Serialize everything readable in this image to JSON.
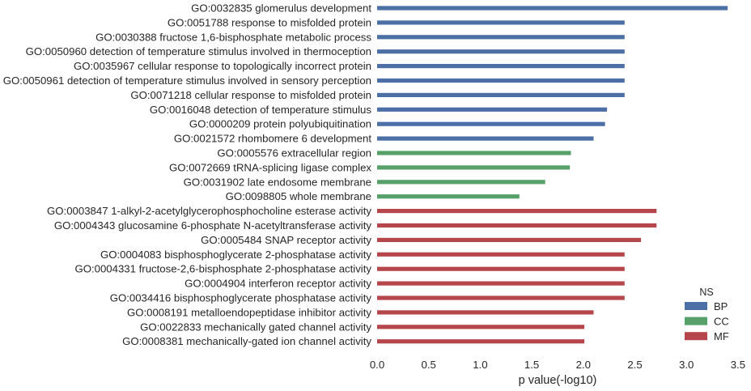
{
  "chart_data": {
    "type": "bar",
    "orientation": "horizontal",
    "xlabel": "p value(-log10)",
    "xlim": [
      0,
      3.5
    ],
    "xticks": [
      "0.0",
      "0.5",
      "1.0",
      "1.5",
      "2.0",
      "2.5",
      "3.0",
      "3.5"
    ],
    "grid": false,
    "legend": {
      "title": "NS",
      "placement": "bottom-right",
      "entries": [
        {
          "name": "BP",
          "color": "#4c6fa5"
        },
        {
          "name": "CC",
          "color": "#57a06a"
        },
        {
          "name": "MF",
          "color": "#b5474c"
        }
      ]
    },
    "bars": [
      {
        "label": "GO:0032835 glomerulus development",
        "value": 3.4,
        "ns": "BP"
      },
      {
        "label": "GO:0051788 response to misfolded protein",
        "value": 2.4,
        "ns": "BP"
      },
      {
        "label": "GO:0030388 fructose 1,6-bisphosphate metabolic process",
        "value": 2.4,
        "ns": "BP"
      },
      {
        "label": "GO:0050960 detection of temperature stimulus involved in thermoception",
        "value": 2.4,
        "ns": "BP"
      },
      {
        "label": "GO:0035967 cellular response to topologically incorrect protein",
        "value": 2.4,
        "ns": "BP"
      },
      {
        "label": "GO:0050961 detection of temperature stimulus involved in sensory perception",
        "value": 2.4,
        "ns": "BP"
      },
      {
        "label": "GO:0071218 cellular response to misfolded protein",
        "value": 2.4,
        "ns": "BP"
      },
      {
        "label": "GO:0016048 detection of temperature stimulus",
        "value": 2.23,
        "ns": "BP"
      },
      {
        "label": "GO:0000209 protein polyubiquitination",
        "value": 2.21,
        "ns": "BP"
      },
      {
        "label": "GO:0021572 rhombomere 6 development",
        "value": 2.1,
        "ns": "BP"
      },
      {
        "label": "GO:0005576 extracellular region",
        "value": 1.88,
        "ns": "CC"
      },
      {
        "label": "GO:0072669 tRNA-splicing ligase complex",
        "value": 1.87,
        "ns": "CC"
      },
      {
        "label": "GO:0031902 late endosome membrane",
        "value": 1.63,
        "ns": "CC"
      },
      {
        "label": "GO:0098805 whole membrane",
        "value": 1.38,
        "ns": "CC"
      },
      {
        "label": "GO:0003847 1-alkyl-2-acetylglycerophosphocholine esterase activity",
        "value": 2.71,
        "ns": "MF"
      },
      {
        "label": "GO:0004343 glucosamine 6-phosphate N-acetyltransferase activity",
        "value": 2.71,
        "ns": "MF"
      },
      {
        "label": "GO:0005484 SNAP receptor activity",
        "value": 2.56,
        "ns": "MF"
      },
      {
        "label": "GO:0004083 bisphosphoglycerate 2-phosphatase activity",
        "value": 2.4,
        "ns": "MF"
      },
      {
        "label": "GO:0004331 fructose-2,6-bisphosphate 2-phosphatase activity",
        "value": 2.4,
        "ns": "MF"
      },
      {
        "label": "GO:0004904 interferon receptor activity",
        "value": 2.4,
        "ns": "MF"
      },
      {
        "label": "GO:0034416 bisphosphoglycerate phosphatase activity",
        "value": 2.4,
        "ns": "MF"
      },
      {
        "label": "GO:0008191 metalloendopeptidase inhibitor activity",
        "value": 2.1,
        "ns": "MF"
      },
      {
        "label": "GO:0022833 mechanically gated channel activity",
        "value": 2.01,
        "ns": "MF"
      },
      {
        "label": "GO:0008381 mechanically-gated ion channel activity",
        "value": 2.01,
        "ns": "MF"
      }
    ]
  }
}
